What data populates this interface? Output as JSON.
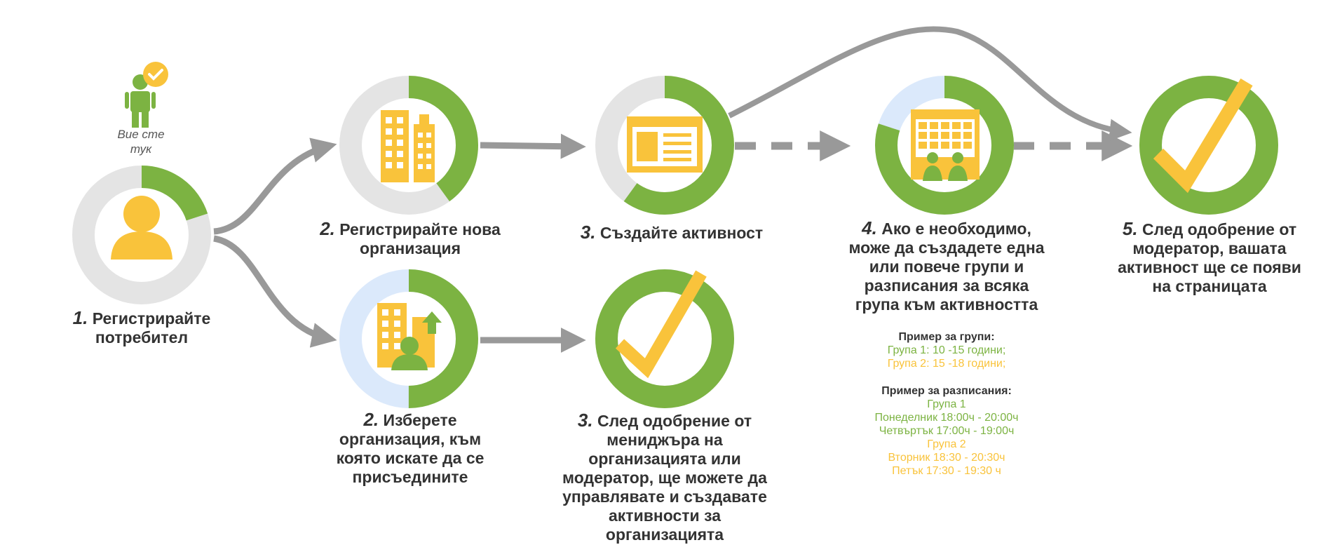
{
  "you_are_here": [
    "Вие сте",
    "тук"
  ],
  "steps": {
    "s1": {
      "num": "1.",
      "lines": [
        "Регистрирайте",
        "потребител"
      ]
    },
    "s2a": {
      "num": "2.",
      "lines": [
        "Регистрирайте нова",
        "организация"
      ]
    },
    "s2b": {
      "num": "2.",
      "lines": [
        "Изберете",
        "организация, към",
        "която искате да се",
        "присъедините"
      ]
    },
    "s3a": {
      "num": "3.",
      "lines": [
        "Създайте активност"
      ]
    },
    "s3b": {
      "num": "3.",
      "lines": [
        "След одобрение от",
        "мениджъра на",
        "организацията или",
        "модератор, ще можете да",
        "управлявате и създавате",
        "активности за",
        "организацията"
      ]
    },
    "s4": {
      "num": "4.",
      "lines": [
        "Ако е необходимо,",
        "може да създадете една",
        "или повече групи и",
        "разписания за всяка",
        "група към активността"
      ]
    },
    "s5": {
      "num": "5.",
      "lines": [
        "След одобрение от",
        "модератор, вашата",
        "активност ще се появи",
        "на страницата"
      ]
    }
  },
  "groups_example": {
    "title": "Пример за групи:",
    "g1": "Група 1: 10 -15 години;",
    "g2": "Група 2: 15 -18 години;"
  },
  "schedule_example": {
    "title": "Пример за разписания:",
    "g1_title": "Група 1",
    "g1_l1": "Понеделник 18:00ч - 20:00ч",
    "g1_l2": "Четвъртък 17:00ч - 19:00ч",
    "g2_title": "Група 2",
    "g2_l1": "Вторник 18:30 - 20:30ч",
    "g2_l2": "Петък 17:30 - 19:30 ч"
  },
  "progress": {
    "s1": 0.2,
    "s2a": 0.4,
    "s2b": 0.5,
    "s3a": 0.6,
    "s3b": 1.0,
    "s4": 0.8,
    "s5": 1.0
  },
  "colors": {
    "green": "#7cb342",
    "yellow": "#f9c33b",
    "grey_ring": "#e4e4e4",
    "blue_ring": "#dbe9fb",
    "arrow": "#999999",
    "text": "#333333"
  }
}
